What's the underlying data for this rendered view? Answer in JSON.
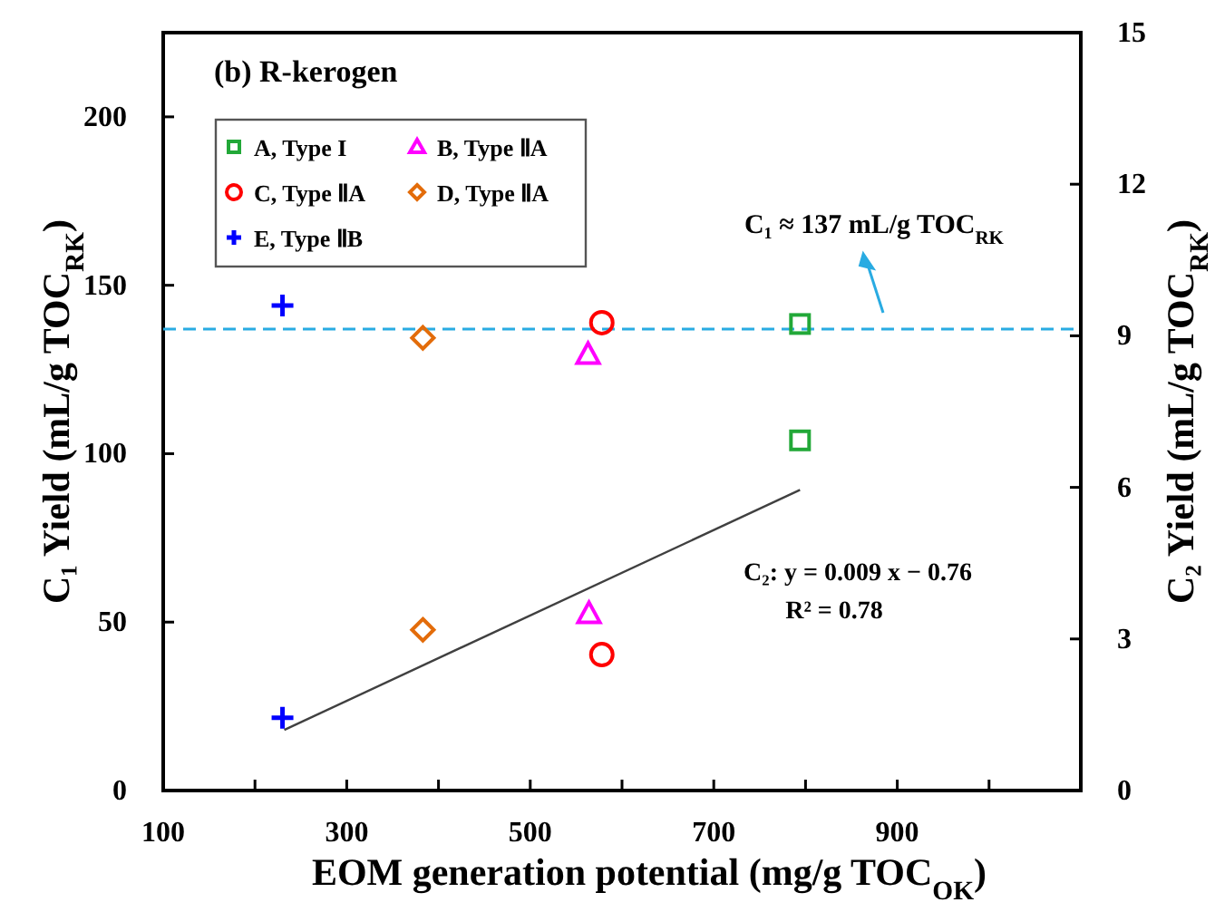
{
  "chart_data": {
    "type": "scatter",
    "title": "(b) R-kerogen",
    "xlabel": "EOM generation potential (mg/g TOC$_{OK}$)",
    "ylabel": "C₁ Yield (mL/g TOC$_{RK}$)",
    "y2label": "C₂ Yield (mL/g TOC$_{RK}$)",
    "xlim": [
      100,
      1100
    ],
    "xticks": [
      100,
      {
        "value": 200,
        "label": null
      },
      300,
      {
        "value": 400,
        "label": null
      },
      500,
      {
        "value": 600,
        "label": null
      },
      700,
      {
        "value": 800,
        "label": null
      },
      900,
      {
        "value": 1000,
        "label": null
      }
    ],
    "ylim": [
      0,
      225
    ],
    "yticks": [
      0,
      50,
      100,
      150,
      200
    ],
    "y2lim": [
      0,
      15
    ],
    "y2ticks": [
      0,
      3,
      6,
      9,
      12,
      15
    ],
    "grid": false,
    "legend": "top left",
    "series": [
      {
        "name": "A, Type I",
        "color": "#22a838",
        "marker": "square",
        "x": [
          794
        ],
        "values": [
          138.5
        ]
      },
      {
        "name": "B, Type ⅡA",
        "color": "#ff00ff",
        "marker": "triangle",
        "x": [
          563
        ],
        "values": [
          129.6
        ]
      },
      {
        "name": "C, Type ⅡA",
        "color": "#ff0000",
        "marker": "circle",
        "x": [
          578
        ],
        "values": [
          138.9
        ]
      },
      {
        "name": "D, Type ⅡA",
        "color": "#e36c0a",
        "marker": "diamond",
        "x": [
          383
        ],
        "values": [
          134.4
        ]
      },
      {
        "name": "E, Type ⅡB",
        "color": "#0000ff",
        "marker": "cross",
        "x": [
          230
        ],
        "values": [
          144
        ]
      },
      {
        "color": "#22a838",
        "marker": "square",
        "axis": "y2",
        "x": [
          794
        ],
        "values": [
          6.93
        ]
      },
      {
        "color": "#ff00ff",
        "marker": "triangle",
        "axis": "y2",
        "x": [
          564
        ],
        "values": [
          3.51
        ]
      },
      {
        "color": "#ff0000",
        "marker": "circle",
        "axis": "y2",
        "x": [
          578
        ],
        "values": [
          2.69
        ]
      },
      {
        "color": "#e36c0a",
        "marker": "diamond",
        "axis": "y2",
        "x": [
          383
        ],
        "values": [
          3.18
        ]
      },
      {
        "color": "#0000ff",
        "marker": "cross",
        "axis": "y2",
        "x": [
          230
        ],
        "values": [
          1.44
        ]
      },
      {
        "type": "line",
        "color": "#404040",
        "marker": "none",
        "axis": "y2",
        "x": [
          232,
          794
        ],
        "values": [
          1.2,
          5.95
        ]
      }
    ],
    "ref_lines": [
      {
        "axis": "y",
        "value": 137,
        "label": "C₁ ≈ 137 mL/g TOC$_{RK}$",
        "color": "#29abe2",
        "line_style": "dashed"
      }
    ],
    "annotations": [
      "C₂: y =  0.009 x − 0.76",
      "R² =  0.78"
    ]
  }
}
